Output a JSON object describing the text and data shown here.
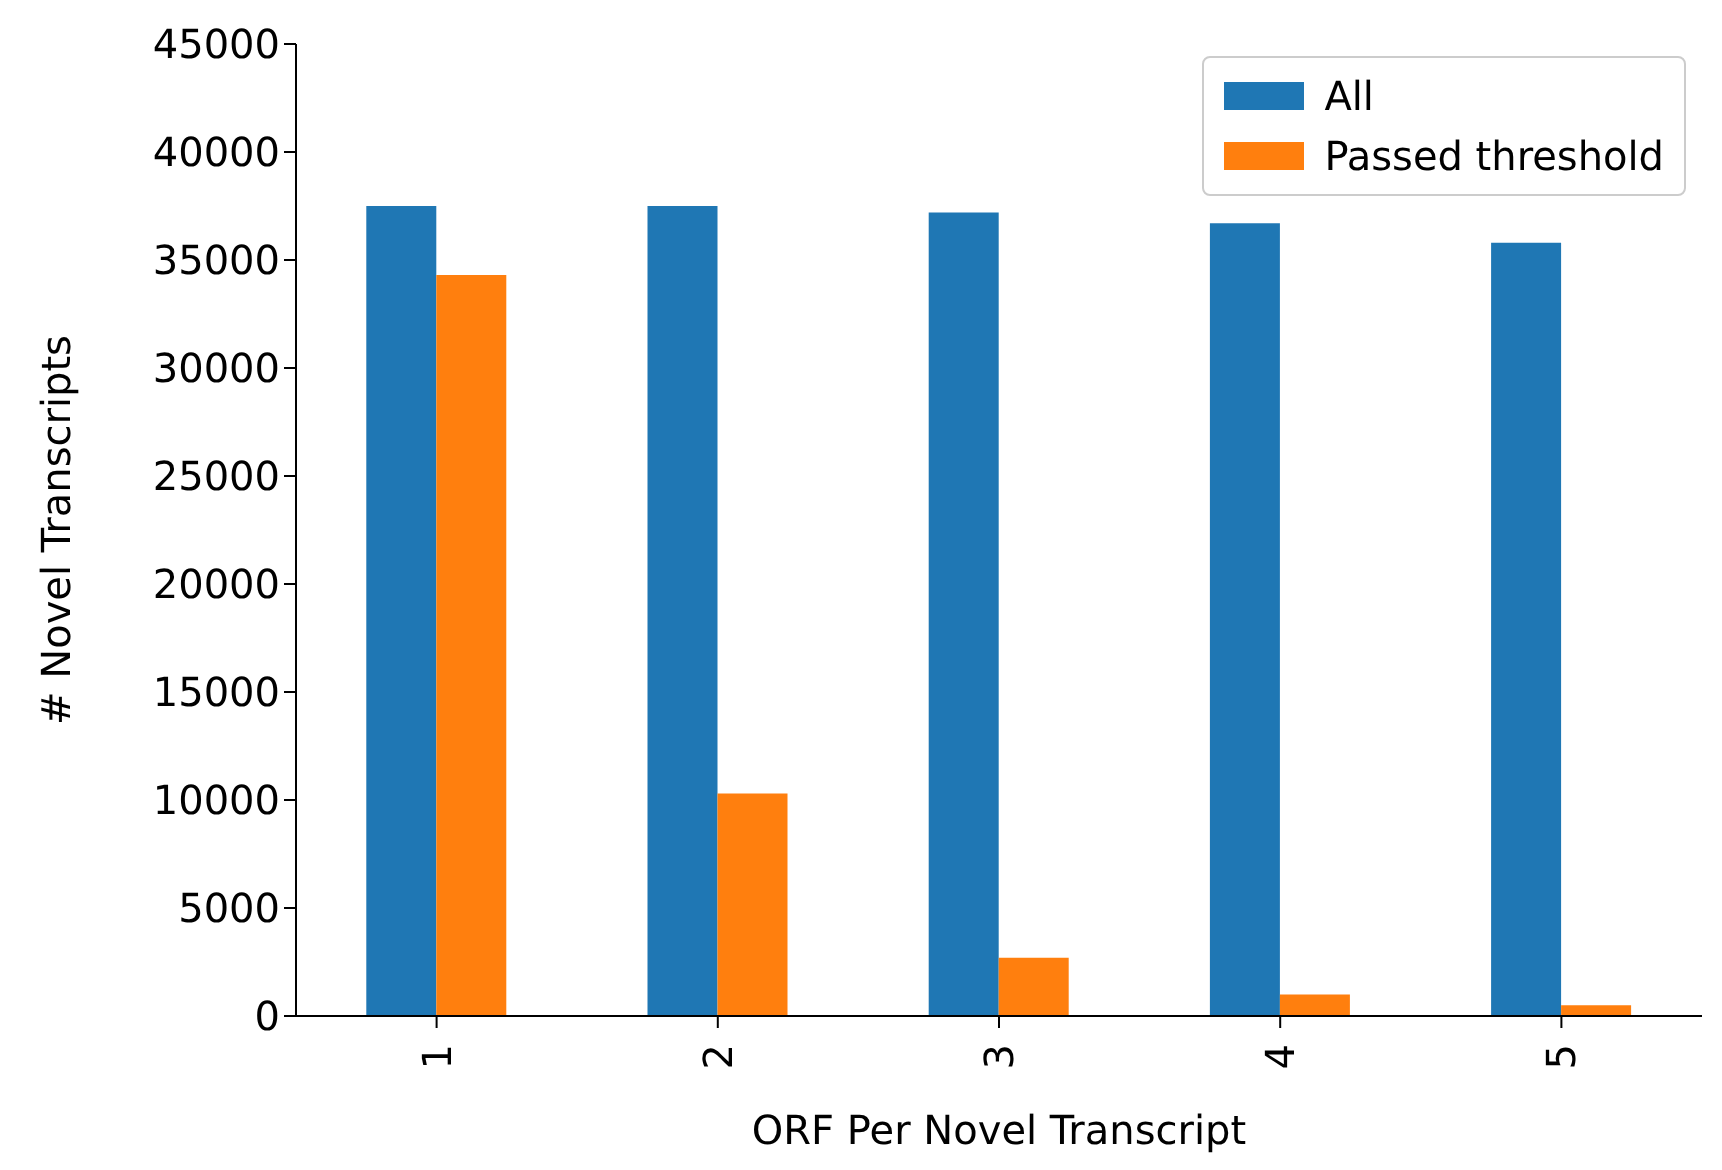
{
  "chart_data": {
    "type": "bar",
    "xlabel": "ORF Per Novel Transcript",
    "ylabel": "# Novel Transcripts",
    "categories": [
      "1",
      "2",
      "3",
      "4",
      "5"
    ],
    "series": [
      {
        "name": "All",
        "color": "#1f77b4",
        "values": [
          37500,
          37500,
          37200,
          36700,
          35800
        ]
      },
      {
        "name": "Passed threshold",
        "color": "#ff7f0e",
        "values": [
          34300,
          10300,
          2700,
          1000,
          500
        ]
      }
    ],
    "ylim": [
      0,
      45000
    ],
    "yticks": [
      0,
      5000,
      10000,
      15000,
      20000,
      25000,
      30000,
      35000,
      40000,
      45000
    ],
    "grid": false,
    "legend": "top right"
  }
}
